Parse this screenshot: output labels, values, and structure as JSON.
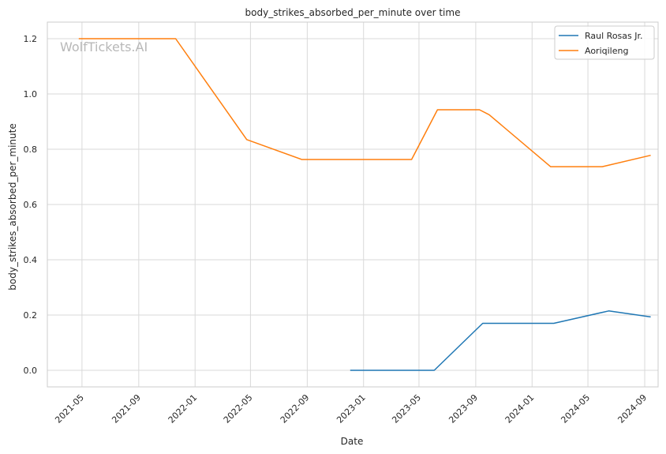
{
  "chart_data": {
    "type": "line",
    "title": "body_strikes_absorbed_per_minute over time",
    "xlabel": "Date",
    "ylabel": "body_strikes_absorbed_per_minute",
    "watermark": "WolfTickets.AI",
    "xlim": [
      "2021-02-15",
      "2024-09-30"
    ],
    "ylim": [
      -0.06,
      1.26
    ],
    "x_ticks": [
      "2021-05-01",
      "2021-09-01",
      "2022-01-01",
      "2022-05-01",
      "2022-09-01",
      "2023-01-01",
      "2023-05-01",
      "2023-09-01",
      "2024-01-01",
      "2024-05-01",
      "2024-09-01"
    ],
    "x_tick_labels": [
      "2021-05",
      "2021-09",
      "2022-01",
      "2022-05",
      "2022-09",
      "2023-01",
      "2023-05",
      "2023-09",
      "2024-01",
      "2024-05",
      "2024-09"
    ],
    "y_ticks": [
      0.0,
      0.2,
      0.4,
      0.6,
      0.8,
      1.0,
      1.2
    ],
    "y_tick_labels": [
      "0.0",
      "0.2",
      "0.4",
      "0.6",
      "0.8",
      "1.0",
      "1.2"
    ],
    "grid": true,
    "legend_position": "top-right",
    "series": [
      {
        "name": "Raul Rosas Jr.",
        "color": "#1f77b4",
        "points": [
          {
            "x": "2022-12-03",
            "y": 0.0
          },
          {
            "x": "2023-06-03",
            "y": 0.0
          },
          {
            "x": "2023-09-16",
            "y": 0.17
          },
          {
            "x": "2024-02-17",
            "y": 0.17
          },
          {
            "x": "2024-06-15",
            "y": 0.215
          },
          {
            "x": "2024-09-14",
            "y": 0.193
          }
        ]
      },
      {
        "name": "Aoriqileng",
        "color": "#ff7f0e",
        "points": [
          {
            "x": "2021-04-24",
            "y": 1.2
          },
          {
            "x": "2021-11-20",
            "y": 1.2
          },
          {
            "x": "2022-04-23",
            "y": 0.835
          },
          {
            "x": "2022-08-20",
            "y": 0.763
          },
          {
            "x": "2023-04-15",
            "y": 0.763
          },
          {
            "x": "2023-06-10",
            "y": 0.943
          },
          {
            "x": "2023-09-09",
            "y": 0.943
          },
          {
            "x": "2023-09-30",
            "y": 0.925
          },
          {
            "x": "2024-02-10",
            "y": 0.737
          },
          {
            "x": "2024-06-01",
            "y": 0.737
          },
          {
            "x": "2024-09-14",
            "y": 0.778
          }
        ]
      }
    ]
  }
}
